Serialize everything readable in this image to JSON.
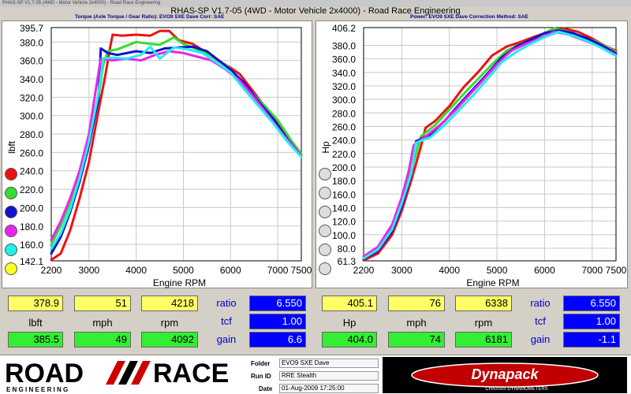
{
  "window_title": "RHAS-SP V1.7-05   (4WD - Motor Vehicle 2x4000) - Road Race Engineering",
  "main_title": "RHAS-SP V1.7-05   (4WD - Motor Vehicle 2x4000) - Road Race Engineering",
  "left_subtitle": "Torque (Axle Torque / Gear Ratio): EVO9 SXE Dave       Corr: SAE",
  "right_subtitle": "Power: EVO9 SXE Dave       Correction Method: SAE",
  "run_colors": [
    "#ee1111",
    "#33dd33",
    "#1111cc",
    "#ee22ee",
    "#22eeee",
    "#ffff22"
  ],
  "chart_data": [
    {
      "type": "line",
      "xlabel": "Engine RPM",
      "ylabel": "lbft",
      "xlim": [
        2200,
        7500
      ],
      "ylim": [
        142.1,
        395.7
      ],
      "x_ticks": [
        "2200",
        "3000",
        "4000",
        "5000",
        "6000",
        "7000",
        "7500"
      ],
      "y_ticks": [
        "142.1",
        "160.0",
        "180.0",
        "200.0",
        "220.0",
        "240.0",
        "260.0",
        "280.0",
        "300.0",
        "320.0",
        "340.0",
        "360.0",
        "380.0",
        "395.7"
      ],
      "series": [
        {
          "color": "#ee1111",
          "x": [
            2200,
            2400,
            2600,
            2800,
            3000,
            3200,
            3350,
            3450,
            3500,
            3700,
            4000,
            4300,
            4500,
            4700,
            4900,
            5200,
            5500,
            5800,
            6000,
            6200,
            6500,
            6800,
            7100,
            7400,
            7500
          ],
          "y": [
            143,
            150,
            175,
            210,
            250,
            305,
            345,
            375,
            388,
            387,
            388,
            387,
            392,
            392,
            382,
            378,
            368,
            358,
            352,
            345,
            325,
            305,
            285,
            265,
            258
          ]
        },
        {
          "color": "#33dd33",
          "x": [
            2200,
            2400,
            2600,
            2800,
            3000,
            3200,
            3300,
            3400,
            3600,
            4000,
            4300,
            4500,
            4800,
            5000,
            5300,
            5600,
            5900,
            6100,
            6400,
            6700,
            7000,
            7300,
            7500
          ],
          "y": [
            160,
            180,
            205,
            235,
            275,
            320,
            355,
            370,
            372,
            380,
            378,
            377,
            385,
            378,
            372,
            365,
            355,
            345,
            328,
            312,
            295,
            272,
            258
          ]
        },
        {
          "color": "#1111cc",
          "x": [
            2200,
            2400,
            2600,
            2800,
            3000,
            3200,
            3250,
            3400,
            3600,
            4000,
            4300,
            4600,
            4900,
            5200,
            5500,
            5800,
            6000,
            6300,
            6600,
            6900,
            7200,
            7500
          ],
          "y": [
            150,
            168,
            195,
            228,
            268,
            318,
            373,
            368,
            366,
            370,
            368,
            373,
            374,
            375,
            370,
            358,
            350,
            335,
            315,
            297,
            275,
            256
          ]
        },
        {
          "color": "#ee22ee",
          "x": [
            2200,
            2400,
            2600,
            2800,
            3000,
            3150,
            3250,
            3500,
            3800,
            4100,
            4400,
            4700,
            5000,
            5300,
            5600,
            5900,
            6200,
            6500,
            6800,
            7100,
            7500
          ],
          "y": [
            165,
            185,
            210,
            240,
            280,
            330,
            362,
            360,
            362,
            360,
            366,
            370,
            368,
            364,
            360,
            350,
            338,
            320,
            300,
            280,
            256
          ]
        },
        {
          "color": "#22eeee",
          "x": [
            2200,
            2400,
            2600,
            2800,
            3000,
            3200,
            3300,
            3500,
            3800,
            4100,
            4300,
            4500,
            4800,
            5100,
            5400,
            5700,
            6000,
            6300,
            6600,
            6900,
            7200,
            7500
          ],
          "y": [
            155,
            172,
            198,
            232,
            272,
            324,
            362,
            363,
            362,
            366,
            375,
            362,
            374,
            372,
            368,
            358,
            347,
            328,
            310,
            292,
            272,
            255
          ]
        }
      ]
    },
    {
      "type": "line",
      "xlabel": "Engine RPM",
      "ylabel": "Hp",
      "xlim": [
        2200,
        7500
      ],
      "ylim": [
        61.3,
        406.2
      ],
      "x_ticks": [
        "2200",
        "3000",
        "4000",
        "5000",
        "6000",
        "7000",
        "7500"
      ],
      "y_ticks": [
        "61.3",
        "80.0",
        "100.0",
        "120.0",
        "140.0",
        "160.0",
        "180.0",
        "200.0",
        "220.0",
        "240.0",
        "260.0",
        "280.0",
        "300.0",
        "320.0",
        "340.0",
        "360.0",
        "380.0",
        "406.2"
      ],
      "series": [
        {
          "color": "#ee1111",
          "x": [
            2200,
            2500,
            2800,
            3000,
            3200,
            3400,
            3500,
            3700,
            4000,
            4300,
            4600,
            4900,
            5200,
            5500,
            5800,
            6100,
            6400,
            6700,
            7000,
            7300,
            7500
          ],
          "y": [
            62,
            72,
            100,
            135,
            180,
            230,
            258,
            268,
            290,
            318,
            340,
            365,
            378,
            385,
            393,
            400,
            405,
            400,
            390,
            378,
            372
          ]
        },
        {
          "color": "#33dd33",
          "x": [
            2200,
            2500,
            2800,
            3000,
            3200,
            3400,
            3700,
            4000,
            4300,
            4600,
            4900,
            5200,
            5500,
            5800,
            6000,
            6200,
            6500,
            6800,
            7100,
            7500
          ],
          "y": [
            66,
            80,
            110,
            150,
            195,
            245,
            262,
            285,
            308,
            330,
            352,
            372,
            382,
            390,
            398,
            405,
            400,
            392,
            385,
            370
          ]
        },
        {
          "color": "#1111cc",
          "x": [
            2200,
            2500,
            2800,
            3000,
            3200,
            3300,
            3600,
            3900,
            4200,
            4500,
            4800,
            5100,
            5400,
            5700,
            6000,
            6300,
            6600,
            6900,
            7200,
            7500
          ],
          "y": [
            64,
            76,
            105,
            142,
            188,
            238,
            248,
            268,
            292,
            315,
            338,
            362,
            378,
            388,
            398,
            402,
            398,
            390,
            380,
            368
          ]
        },
        {
          "color": "#ee22ee",
          "x": [
            2200,
            2500,
            2800,
            3000,
            3150,
            3250,
            3500,
            3800,
            4100,
            4400,
            4700,
            5000,
            5300,
            5600,
            5900,
            6200,
            6500,
            6800,
            7100,
            7500
          ],
          "y": [
            68,
            82,
            115,
            155,
            195,
            232,
            245,
            262,
            282,
            305,
            328,
            352,
            372,
            382,
            390,
            400,
            396,
            388,
            380,
            366
          ]
        },
        {
          "color": "#22eeee",
          "x": [
            2200,
            2500,
            2800,
            3000,
            3200,
            3300,
            3600,
            3900,
            4200,
            4500,
            4800,
            5100,
            5400,
            5700,
            6000,
            6300,
            6600,
            6900,
            7200,
            7500
          ],
          "y": [
            65,
            78,
            108,
            146,
            190,
            236,
            244,
            262,
            284,
            306,
            330,
            355,
            370,
            382,
            392,
            400,
            394,
            386,
            376,
            364
          ]
        }
      ]
    }
  ],
  "stats_left": {
    "row1": [
      "378.9",
      "51",
      "4218"
    ],
    "units": [
      "lbft",
      "mph",
      "rpm"
    ],
    "row2": [
      "385.5",
      "49",
      "4092"
    ],
    "labels": [
      "ratio",
      "tcf",
      "gain"
    ],
    "values": [
      "6.550",
      "1.00",
      "6.6"
    ]
  },
  "stats_right": {
    "row1": [
      "405.1",
      "76",
      "6338"
    ],
    "units": [
      "Hp",
      "mph",
      "rpm"
    ],
    "row2": [
      "404.0",
      "74",
      "6181"
    ],
    "labels": [
      "ratio",
      "tcf",
      "gain"
    ],
    "values": [
      "6.550",
      "1.00",
      "-1.1"
    ]
  },
  "footer": {
    "logo_top": "ROAD",
    "logo_top2": "RACE",
    "logo_sub": "E N G I N E E R I N G",
    "folder_label": "Folder",
    "folder_value": "EVO9 SXE Dave",
    "runid_label": "Run ID",
    "runid_value": "RRE Stealth",
    "date_label": "Date",
    "date_value": "01-Aug-2009  17:25:00",
    "right_logo": "Dynapack",
    "right_logo_sub": "CHASSIS DYNAMOMETERS"
  }
}
